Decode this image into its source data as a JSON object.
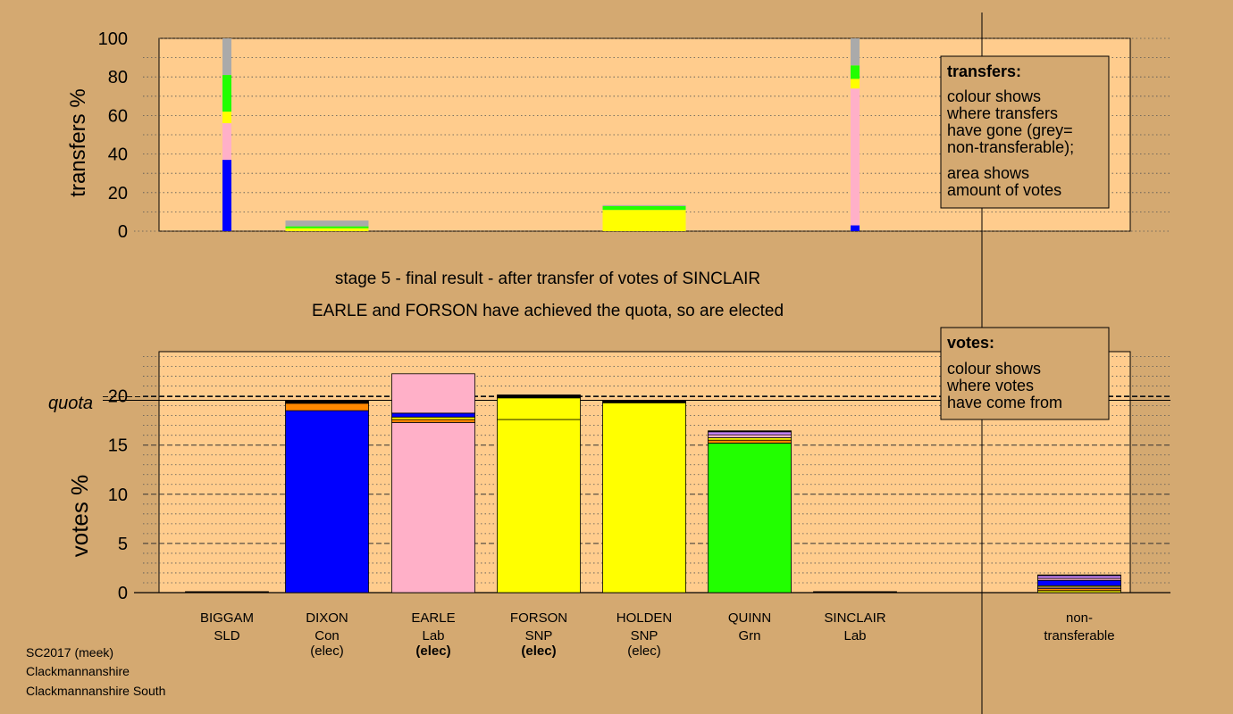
{
  "colors": {
    "background": "#d4a971",
    "plot_background": "#ffcc8d",
    "grey": "#aaaaaa",
    "blue": "#0000ff",
    "pink": "#ffb0c8",
    "yellow": "#ffff00",
    "green": "#22ff00",
    "orange": "#ff8800",
    "purple": "#cc88ff",
    "black": "#000000"
  },
  "stage_text": "stage 5 - final result - after transfer of votes of SINCLAIR",
  "elected_text": "EARLE and FORSON have achieved the quota, so are elected",
  "footer": [
    "SC2017 (meek)",
    "Clackmannanshire",
    "Clackmannanshire South"
  ],
  "legend_transfers": {
    "title": "transfers:",
    "lines": [
      "colour shows",
      "where transfers",
      "have gone (grey=",
      "non-transferable);",
      "area shows",
      "amount of votes"
    ]
  },
  "legend_votes": {
    "title": "votes:",
    "lines": [
      "colour shows",
      "where votes",
      "have come from"
    ]
  },
  "quota_label": "quota",
  "candidates": [
    {
      "name": "BIGGAM",
      "party": "SLD",
      "status": "",
      "bold": false
    },
    {
      "name": "DIXON",
      "party": "Con",
      "status": "(elec)",
      "bold": false
    },
    {
      "name": "EARLE",
      "party": "Lab",
      "status": "(elec)",
      "bold": true
    },
    {
      "name": "FORSON",
      "party": "SNP",
      "status": "(elec)",
      "bold": true
    },
    {
      "name": "HOLDEN",
      "party": "SNP",
      "status": "(elec)",
      "bold": false
    },
    {
      "name": "QUINN",
      "party": "Grn",
      "status": "",
      "bold": false
    },
    {
      "name": "SINCLAIR",
      "party": "Lab",
      "status": "",
      "bold": false
    }
  ],
  "nontransferable_label": [
    "non-",
    "transferable"
  ],
  "chart_data": [
    {
      "type": "bar",
      "ylabel": "transfers %",
      "ylim": [
        0,
        100
      ],
      "yticks": [
        0,
        20,
        40,
        60,
        80,
        100
      ],
      "grid": "dotted",
      "legend": "top-right",
      "bars": [
        {
          "slot": 0,
          "width": "narrow",
          "segments": [
            {
              "color": "blue",
              "value": 37
            },
            {
              "color": "pink",
              "value": 19
            },
            {
              "color": "yellow",
              "value": 6
            },
            {
              "color": "green",
              "value": 19
            },
            {
              "color": "grey",
              "value": 19
            }
          ]
        },
        {
          "slot": 1,
          "width": "wide",
          "segments": [
            {
              "color": "yellow",
              "value": 1.5
            },
            {
              "color": "green",
              "value": 1
            },
            {
              "color": "grey",
              "value": 3
            }
          ]
        },
        {
          "slot": 4,
          "width": "wide",
          "segments": [
            {
              "color": "yellow",
              "value": 11
            },
            {
              "color": "green",
              "value": 2
            },
            {
              "color": "grey",
              "value": 0.5
            }
          ]
        },
        {
          "slot": 6,
          "width": "narrow",
          "segments": [
            {
              "color": "blue",
              "value": 3
            },
            {
              "color": "pink",
              "value": 71
            },
            {
              "color": "yellow",
              "value": 5
            },
            {
              "color": "green",
              "value": 7
            },
            {
              "color": "grey",
              "value": 14
            }
          ]
        }
      ]
    },
    {
      "type": "bar",
      "ylabel": "votes %",
      "ylim": [
        0,
        24.5
      ],
      "yticks": [
        0,
        5,
        10,
        15,
        20
      ],
      "quota": 19.55,
      "grid": "dashed",
      "legend": "top-right",
      "bars": [
        {
          "slot": 0,
          "segments": [
            {
              "color": "black",
              "value": 0.1
            }
          ]
        },
        {
          "slot": 1,
          "segments": [
            {
              "color": "blue",
              "value": 18.5
            },
            {
              "color": "orange",
              "value": 0.75
            },
            {
              "color": "black",
              "value": 0.3
            }
          ]
        },
        {
          "slot": 2,
          "segments": [
            {
              "color": "pink",
              "value": 17.3
            },
            {
              "color": "orange",
              "value": 0.3
            },
            {
              "color": "yellow",
              "value": 0.25
            },
            {
              "color": "blue",
              "value": 0.4
            },
            {
              "color": "pink",
              "value": 4.0
            }
          ]
        },
        {
          "slot": 3,
          "segments": [
            {
              "color": "yellow",
              "value": 17.6
            },
            {
              "color": "yellow",
              "value": 2.2
            },
            {
              "color": "black",
              "value": 0.3
            }
          ]
        },
        {
          "slot": 4,
          "segments": [
            {
              "color": "yellow",
              "value": 19.3
            },
            {
              "color": "black",
              "value": 0.25
            }
          ]
        },
        {
          "slot": 5,
          "segments": [
            {
              "color": "green",
              "value": 15.2
            },
            {
              "color": "orange",
              "value": 0.3
            },
            {
              "color": "yellow",
              "value": 0.25
            },
            {
              "color": "pink",
              "value": 0.3
            },
            {
              "color": "purple",
              "value": 0.3
            },
            {
              "color": "black",
              "value": 0.1
            }
          ]
        },
        {
          "slot": 6,
          "segments": [
            {
              "color": "black",
              "value": 0.1
            }
          ]
        },
        {
          "slot": 8,
          "segments": [
            {
              "color": "yellow",
              "value": 0.2
            },
            {
              "color": "orange",
              "value": 0.2
            },
            {
              "color": "pink",
              "value": 0.15
            },
            {
              "color": "yellow",
              "value": 0.15
            },
            {
              "color": "blue",
              "value": 0.55
            },
            {
              "color": "pink",
              "value": 0.2
            },
            {
              "color": "purple",
              "value": 0.3
            },
            {
              "color": "black",
              "value": 0.05
            }
          ]
        }
      ]
    }
  ]
}
